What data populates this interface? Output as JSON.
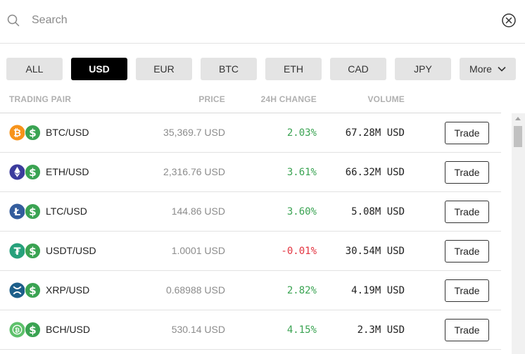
{
  "search": {
    "placeholder": "Search"
  },
  "filters": [
    {
      "label": "ALL",
      "active": false
    },
    {
      "label": "USD",
      "active": true
    },
    {
      "label": "EUR",
      "active": false
    },
    {
      "label": "BTC",
      "active": false
    },
    {
      "label": "ETH",
      "active": false
    },
    {
      "label": "CAD",
      "active": false
    },
    {
      "label": "JPY",
      "active": false
    },
    {
      "label": "More",
      "active": false
    }
  ],
  "table": {
    "headers": {
      "pair": "TRADING PAIR",
      "price": "PRICE",
      "change": "24H CHANGE",
      "volume": "VOLUME"
    },
    "rows": [
      {
        "coin_icon": "bitcoin-icon",
        "coin_color": "#f7931a",
        "pair": "BTC/USD",
        "price": "35,369.7 USD",
        "change": "2.03%",
        "direction": "up",
        "volume": "67.28M USD",
        "action": "Trade"
      },
      {
        "coin_icon": "ethereum-icon",
        "coin_color": "#3c3c9d",
        "pair": "ETH/USD",
        "price": "2,316.76 USD",
        "change": "3.61%",
        "direction": "up",
        "volume": "66.32M USD",
        "action": "Trade"
      },
      {
        "coin_icon": "litecoin-icon",
        "coin_color": "#345d9d",
        "pair": "LTC/USD",
        "price": "144.86 USD",
        "change": "3.60%",
        "direction": "up",
        "volume": "5.08M USD",
        "action": "Trade"
      },
      {
        "coin_icon": "tether-icon",
        "coin_color": "#26a17b",
        "pair": "USDT/USD",
        "price": "1.0001 USD",
        "change": "-0.01%",
        "direction": "down",
        "volume": "30.54M USD",
        "action": "Trade"
      },
      {
        "coin_icon": "xrp-icon",
        "coin_color": "#1d5f8a",
        "pair": "XRP/USD",
        "price": "0.68988 USD",
        "change": "2.82%",
        "direction": "up",
        "volume": "4.19M USD",
        "action": "Trade"
      },
      {
        "coin_icon": "bitcoin-cash-icon",
        "coin_color": "#5ec16b",
        "pair": "BCH/USD",
        "price": "530.14 USD",
        "change": "4.15%",
        "direction": "up",
        "volume": "2.3M USD",
        "action": "Trade"
      }
    ]
  },
  "colors": {
    "up": "#3aa352",
    "down": "#e3333f",
    "usd_icon": "#3aa352",
    "active_chip": "#000000"
  }
}
